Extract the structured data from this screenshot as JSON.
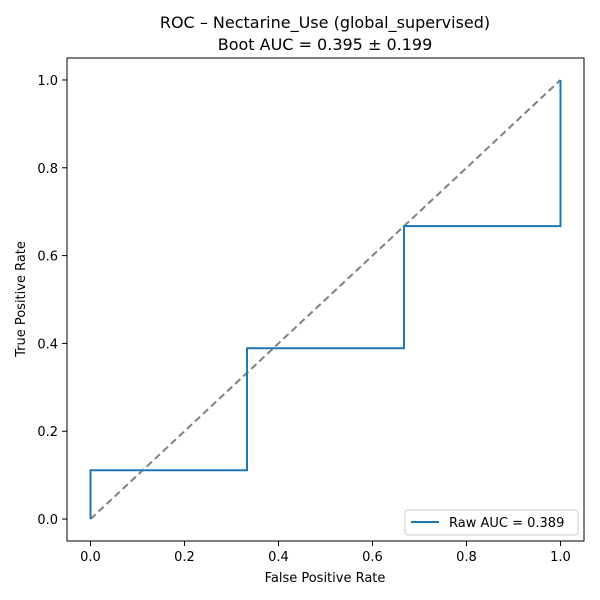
{
  "chart_data": {
    "type": "line",
    "title_line1": "ROC – Nectarine_Use (global_supervised)",
    "title_line2": "Boot AUC = 0.395 ± 0.199",
    "xlabel": "False Positive Rate",
    "ylabel": "True Positive Rate",
    "xlim": [
      -0.05,
      1.05
    ],
    "ylim": [
      -0.05,
      1.05
    ],
    "x_ticks": [
      0.0,
      0.2,
      0.4,
      0.6,
      0.8,
      1.0
    ],
    "y_ticks": [
      0.0,
      0.2,
      0.4,
      0.6,
      0.8,
      1.0
    ],
    "x_tick_labels": [
      "0.0",
      "0.2",
      "0.4",
      "0.6",
      "0.8",
      "1.0"
    ],
    "y_tick_labels": [
      "0.0",
      "0.2",
      "0.4",
      "0.6",
      "0.8",
      "1.0"
    ],
    "grid": false,
    "legend_position": "lower right",
    "series": [
      {
        "name": "Raw AUC = 0.389",
        "color": "#1f77b4",
        "style": "solid",
        "x": [
          0.0,
          0.0,
          0.333,
          0.333,
          0.667,
          0.667,
          1.0,
          1.0
        ],
        "y": [
          0.0,
          0.111,
          0.111,
          0.389,
          0.389,
          0.667,
          0.667,
          1.0
        ]
      }
    ],
    "reference_line": {
      "color": "#808080",
      "style": "dashed",
      "x": [
        0.0,
        1.0
      ],
      "y": [
        0.0,
        1.0
      ]
    }
  }
}
